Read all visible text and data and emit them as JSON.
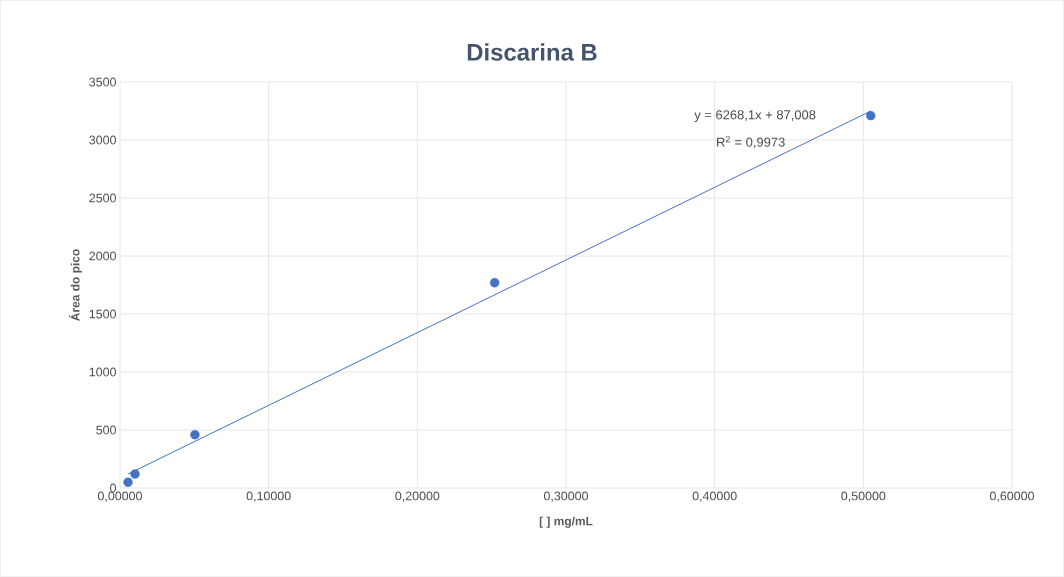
{
  "chart_data": {
    "type": "scatter",
    "title": "Discarina B",
    "xlabel": "[ ] mg/mL",
    "ylabel": "Área do pico",
    "series": [
      {
        "color": "#4472c4",
        "x": [
          0.0054,
          0.0101,
          0.0504,
          0.252,
          0.505
        ],
        "values": [
          50,
          120,
          460,
          1770,
          3210
        ],
        "marker": "circle"
      },
      {
        "type": "line",
        "color": "#4472c4",
        "x": [
          0.0054,
          0.505
        ],
        "values": [
          120,
          3250
        ],
        "marker": "none"
      }
    ],
    "xlim": [
      0,
      0.6
    ],
    "ylim": [
      0,
      3500
    ],
    "xticks": [
      {
        "value": 0,
        "label": "0,00000"
      },
      {
        "value": 0.1,
        "label": "0,10000"
      },
      {
        "value": 0.2,
        "label": "0,20000"
      },
      {
        "value": 0.3,
        "label": "0,30000"
      },
      {
        "value": 0.4,
        "label": "0,40000"
      },
      {
        "value": 0.5,
        "label": "0,50000"
      },
      {
        "value": 0.6,
        "label": "0,60000"
      }
    ],
    "yticks": [
      0,
      500,
      1000,
      1500,
      2000,
      2500,
      3000,
      3500
    ],
    "grid": true,
    "annotations": [
      "y = 6268,1x + 87,008",
      "R$^{2}$ = 0,9973"
    ]
  }
}
